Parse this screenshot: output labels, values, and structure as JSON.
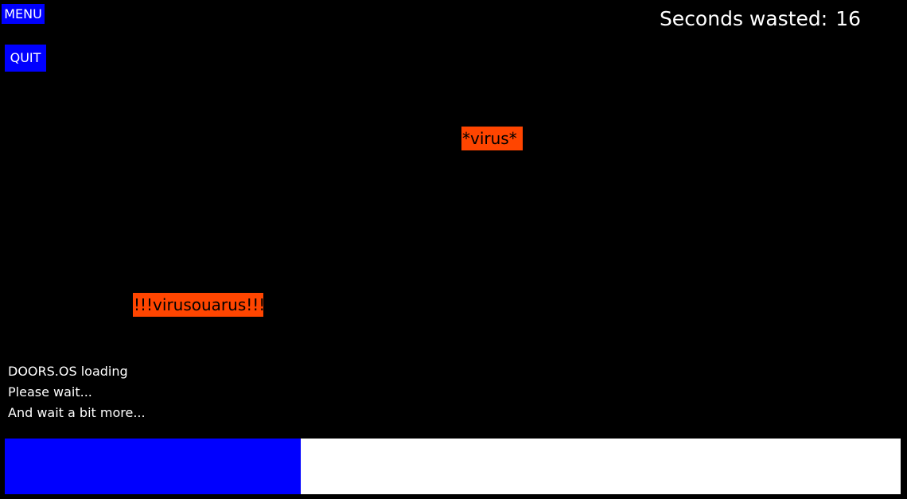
{
  "controls": {
    "menu_label": "MENU",
    "quit_label": "QUIT"
  },
  "timer": {
    "label": "Seconds wasted:",
    "value": "16"
  },
  "viruses": [
    {
      "label": "*virus*"
    },
    {
      "label": "!!!virusouarus!!!"
    }
  ],
  "loading": {
    "lines": [
      "DOORS.OS loading",
      "Please wait...",
      "And wait a bit more..."
    ]
  },
  "progress": {
    "fraction": 0.33
  },
  "colors": {
    "background": "#000000",
    "button": "#0000ff",
    "virus": "#ff4500",
    "progress_fill": "#0000ff",
    "progress_track": "#ffffff"
  }
}
